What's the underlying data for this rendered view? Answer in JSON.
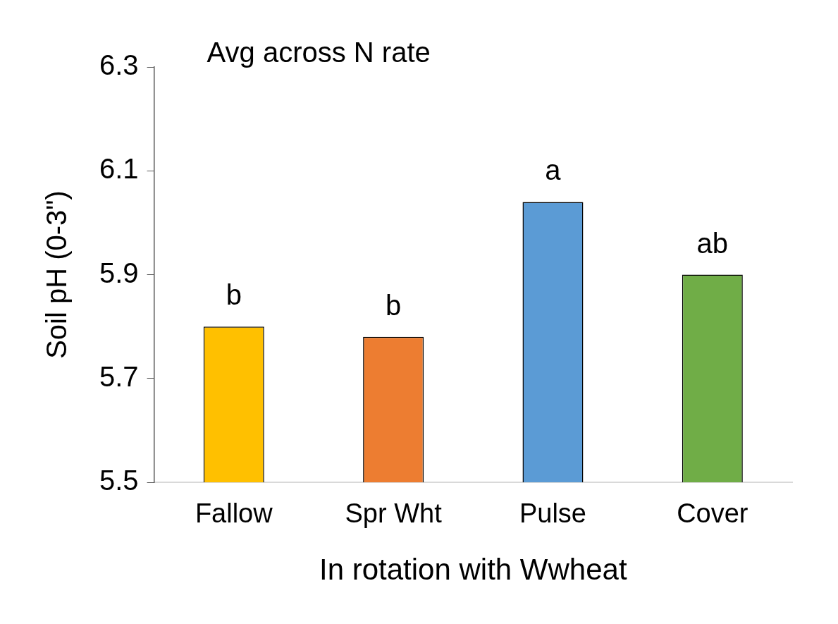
{
  "chart_data": {
    "type": "bar",
    "title": "Avg across N rate",
    "x_label": "In rotation with Wwheat",
    "y_label": "Soil pH (0-3\")",
    "categories": [
      "Fallow",
      "Spr Wht",
      "Pulse",
      "Cover"
    ],
    "values": [
      5.8,
      5.78,
      6.04,
      5.9
    ],
    "colors": [
      "#ffc000",
      "#ed7d31",
      "#5b9bd5",
      "#70ad47"
    ],
    "annotations": [
      "b",
      "b",
      "a",
      "ab"
    ],
    "ylim": [
      5.5,
      6.3
    ],
    "yticks": [
      5.5,
      5.7,
      5.9,
      6.1,
      6.3
    ],
    "grid": false
  }
}
